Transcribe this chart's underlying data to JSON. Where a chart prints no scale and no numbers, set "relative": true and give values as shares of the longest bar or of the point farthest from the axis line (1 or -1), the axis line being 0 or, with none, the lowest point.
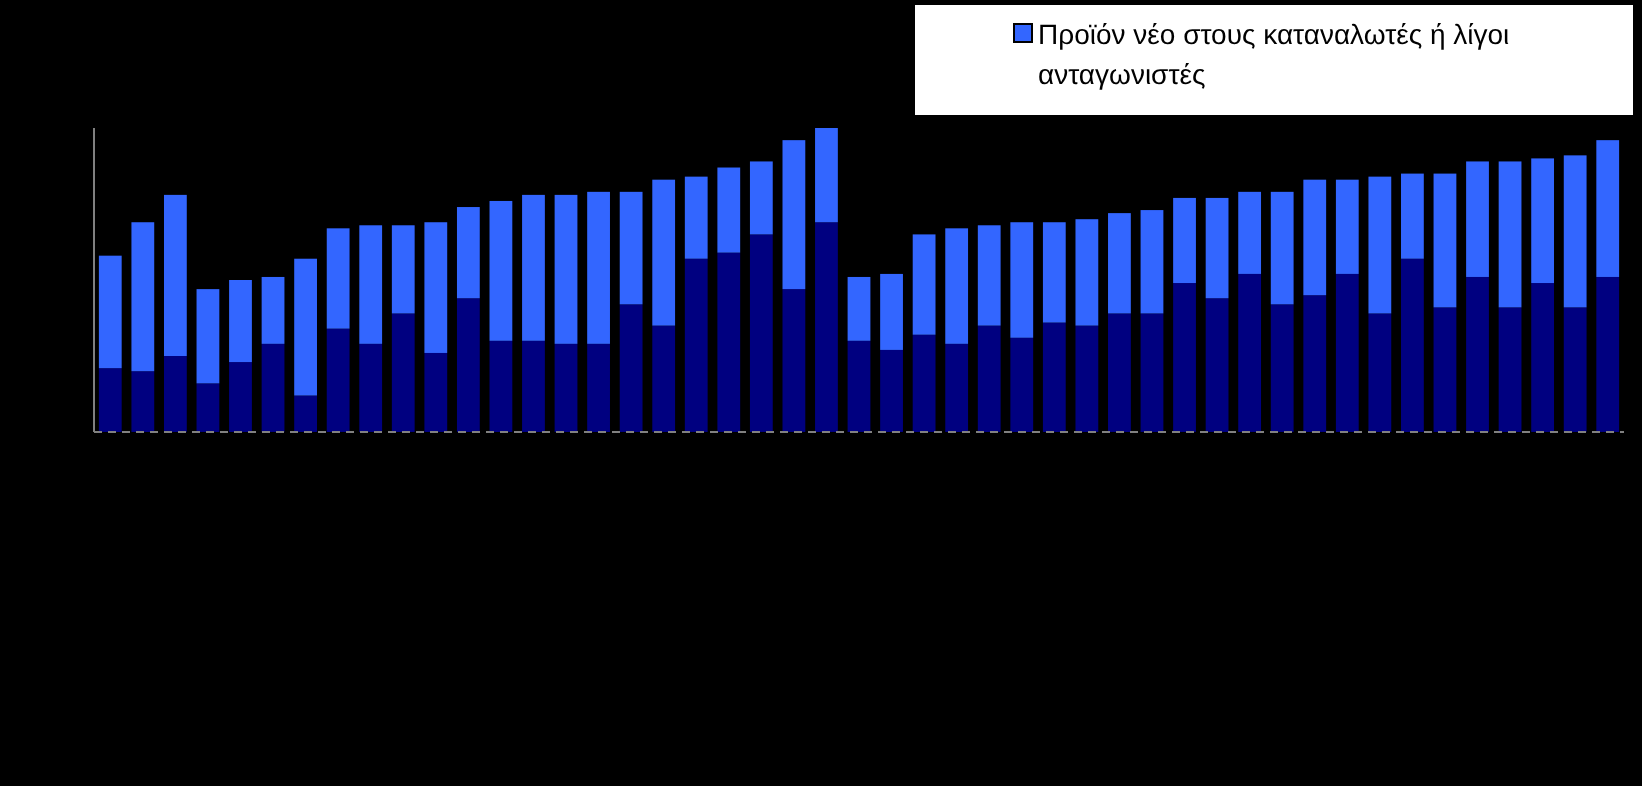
{
  "chart_data": {
    "type": "bar",
    "stacked": true,
    "relative": true,
    "legend": "top right",
    "categories": [
      null,
      null,
      null,
      null,
      null,
      null,
      null,
      null,
      null,
      null,
      null,
      null,
      null,
      null,
      null,
      null,
      null,
      null,
      null,
      null,
      null,
      null,
      null,
      null,
      null,
      null,
      null,
      null,
      null,
      null,
      null,
      null,
      null,
      null,
      null,
      null,
      null,
      null,
      null,
      null,
      null,
      null,
      null,
      null,
      null,
      null,
      null
    ],
    "series": [
      {
        "color": "#000080",
        "values": [
          0.21,
          0.2,
          0.25,
          0.16,
          0.23,
          0.29,
          0.12,
          0.34,
          0.29,
          0.39,
          0.26,
          0.44,
          0.3,
          0.3,
          0.29,
          0.29,
          0.42,
          0.35,
          0.57,
          0.59,
          0.65,
          0.47,
          0.69,
          0.3,
          0.27,
          0.32,
          0.29,
          0.35,
          0.31,
          0.36,
          0.35,
          0.39,
          0.39,
          0.49,
          0.44,
          0.52,
          0.42,
          0.45,
          0.52,
          0.39,
          0.57,
          0.41,
          0.51,
          0.41,
          0.49,
          0.41,
          0.51
        ]
      },
      {
        "name": "Προϊόν νέο στους καταναλωτές ή λίγοι ανταγωνιστές",
        "color": "#3366ff",
        "values": [
          0.37,
          0.49,
          0.53,
          0.31,
          0.27,
          0.22,
          0.45,
          0.33,
          0.39,
          0.29,
          0.43,
          0.3,
          0.46,
          0.48,
          0.49,
          0.5,
          0.37,
          0.48,
          0.27,
          0.28,
          0.24,
          0.49,
          0.31,
          0.21,
          0.25,
          0.33,
          0.38,
          0.33,
          0.38,
          0.33,
          0.35,
          0.33,
          0.34,
          0.28,
          0.33,
          0.27,
          0.37,
          0.38,
          0.31,
          0.45,
          0.28,
          0.44,
          0.38,
          0.48,
          0.41,
          0.5,
          0.45
        ]
      }
    ]
  }
}
